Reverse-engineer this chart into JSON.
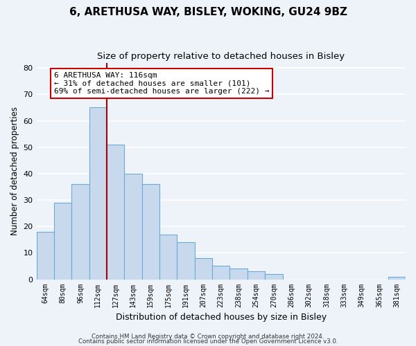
{
  "title": "6, ARETHUSA WAY, BISLEY, WOKING, GU24 9BZ",
  "subtitle": "Size of property relative to detached houses in Bisley",
  "xlabel": "Distribution of detached houses by size in Bisley",
  "ylabel": "Number of detached properties",
  "categories": [
    "64sqm",
    "80sqm",
    "96sqm",
    "112sqm",
    "127sqm",
    "143sqm",
    "159sqm",
    "175sqm",
    "191sqm",
    "207sqm",
    "223sqm",
    "238sqm",
    "254sqm",
    "270sqm",
    "286sqm",
    "302sqm",
    "318sqm",
    "333sqm",
    "349sqm",
    "365sqm",
    "381sqm"
  ],
  "values": [
    18,
    29,
    36,
    65,
    51,
    40,
    36,
    17,
    14,
    8,
    5,
    4,
    3,
    2,
    0,
    0,
    0,
    0,
    0,
    0,
    1
  ],
  "bar_color": "#c8d9ee",
  "bar_edge_color": "#6aaad4",
  "vline_color": "#aa0000",
  "annotation_text": "6 ARETHUSA WAY: 116sqm\n← 31% of detached houses are smaller (101)\n69% of semi-detached houses are larger (222) →",
  "annotation_box_edgecolor": "#cc0000",
  "annotation_box_facecolor": "#ffffff",
  "ylim": [
    0,
    82
  ],
  "yticks": [
    0,
    10,
    20,
    30,
    40,
    50,
    60,
    70,
    80
  ],
  "footer1": "Contains HM Land Registry data © Crown copyright and database right 2024.",
  "footer2": "Contains public sector information licensed under the Open Government Licence v3.0.",
  "background_color": "#eef2f9",
  "grid_color": "#ffffff",
  "title_fontsize": 11,
  "subtitle_fontsize": 9.5
}
